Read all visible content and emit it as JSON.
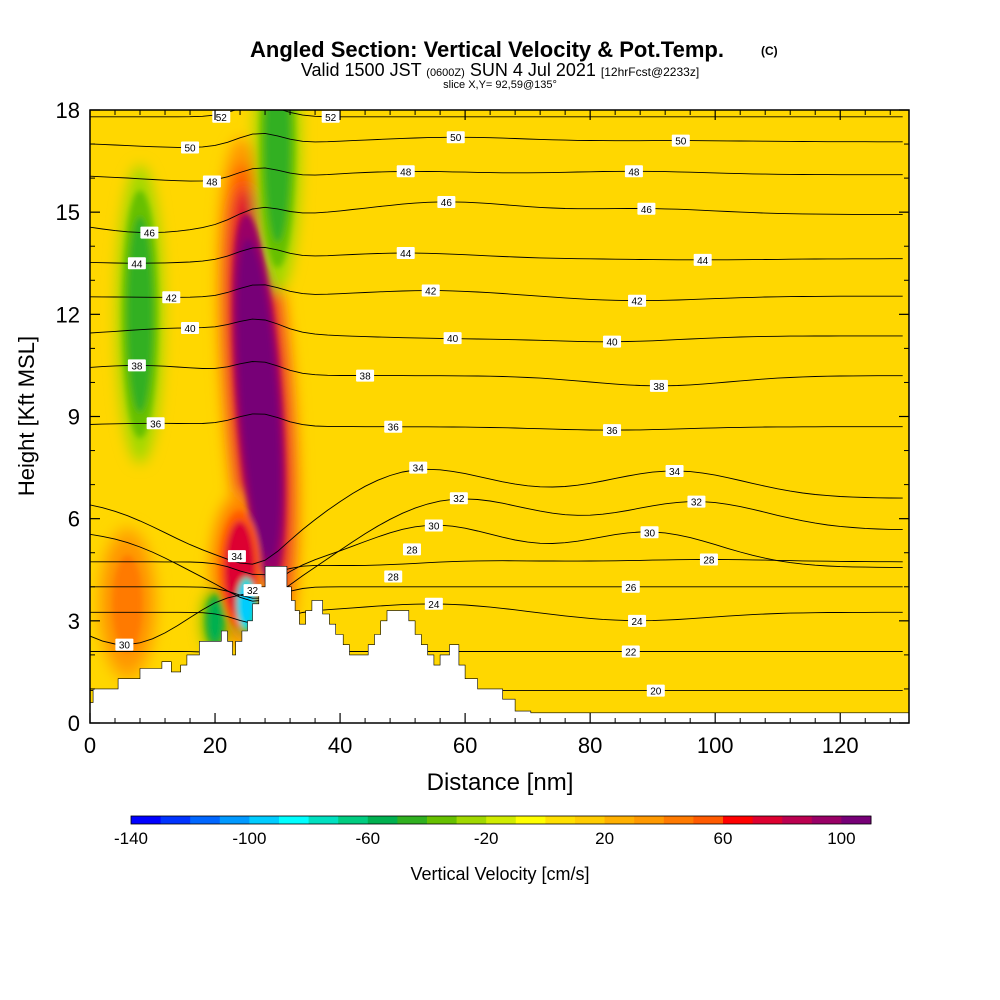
{
  "chart_data": {
    "type": "heatmap",
    "title": "Angled Section: Vertical Velocity & Pot.Temp.",
    "title_units": "(C)",
    "subtitle_main_a": "Valid 1500 JST",
    "subtitle_small_a": "(0600Z)",
    "subtitle_main_b": "SUN 4 Jul 2021",
    "subtitle_small_b": "[12hrFcst@2233z]",
    "slice_label": "slice X,Y= 92,59@135°",
    "xlabel": "Distance [nm]",
    "ylabel": "Height [Kft MSL]",
    "xlim": [
      0,
      131
    ],
    "ylim": [
      0,
      18
    ],
    "x_ticks": [
      0,
      20,
      40,
      60,
      80,
      100,
      120
    ],
    "y_ticks": [
      0,
      3,
      6,
      9,
      12,
      15,
      18
    ],
    "colorbar": {
      "label": "Vertical Velocity [cm/s]",
      "ticks": [
        -140,
        -100,
        -60,
        -20,
        20,
        60,
        100
      ],
      "min": -140,
      "max": 110,
      "colors": [
        "#0000ff",
        "#0033ff",
        "#0066ff",
        "#0099ff",
        "#00ccff",
        "#00ffff",
        "#00e0c0",
        "#00cc80",
        "#00b050",
        "#30b020",
        "#66c000",
        "#a0d800",
        "#d0ec00",
        "#ffff00",
        "#ffe000",
        "#ffcc00",
        "#ffb000",
        "#ff9900",
        "#ff7a00",
        "#ff5a00",
        "#ff0000",
        "#dd0030",
        "#bb0050",
        "#990066",
        "#770077"
      ]
    },
    "velocity_features": [
      {
        "kind": "updraft",
        "x": 27,
        "z": 9.5,
        "max": 110
      },
      {
        "kind": "updraft",
        "x": 24,
        "z": 4.5,
        "max": 70
      },
      {
        "kind": "updraft",
        "x": 6,
        "z": 3.5,
        "max": 45
      },
      {
        "kind": "downdraft",
        "x": 8,
        "z": 12,
        "min": -50
      },
      {
        "kind": "downdraft",
        "x": 30,
        "z": 17,
        "min": -45
      },
      {
        "kind": "downdraft",
        "x": 20,
        "z": 3,
        "min": -60
      },
      {
        "kind": "downdraft",
        "x": 25,
        "z": 3.5,
        "min": -100
      }
    ],
    "theta_contour_labels": [
      {
        "text": "52",
        "x": 21,
        "z": 17.8
      },
      {
        "text": "52",
        "x": 38.5,
        "z": 17.8
      },
      {
        "text": "50",
        "x": 16,
        "z": 16.9
      },
      {
        "text": "50",
        "x": 58.5,
        "z": 17.2
      },
      {
        "text": "50",
        "x": 94.5,
        "z": 17.1
      },
      {
        "text": "48",
        "x": 19.5,
        "z": 15.9
      },
      {
        "text": "48",
        "x": 50.5,
        "z": 16.2
      },
      {
        "text": "48",
        "x": 87,
        "z": 16.2
      },
      {
        "text": "46",
        "x": 9.5,
        "z": 14.4
      },
      {
        "text": "46",
        "x": 57,
        "z": 15.3
      },
      {
        "text": "46",
        "x": 89,
        "z": 15.1
      },
      {
        "text": "44",
        "x": 7.5,
        "z": 13.5
      },
      {
        "text": "44",
        "x": 50.5,
        "z": 13.8
      },
      {
        "text": "44",
        "x": 98,
        "z": 13.6
      },
      {
        "text": "42",
        "x": 13,
        "z": 12.5
      },
      {
        "text": "42",
        "x": 54.5,
        "z": 12.7
      },
      {
        "text": "42",
        "x": 87.5,
        "z": 12.4
      },
      {
        "text": "40",
        "x": 16,
        "z": 11.6
      },
      {
        "text": "40",
        "x": 58,
        "z": 11.3
      },
      {
        "text": "40",
        "x": 83.5,
        "z": 11.2
      },
      {
        "text": "38",
        "x": 7.5,
        "z": 10.5
      },
      {
        "text": "38",
        "x": 44,
        "z": 10.2
      },
      {
        "text": "38",
        "x": 91,
        "z": 9.9
      },
      {
        "text": "36",
        "x": 10.5,
        "z": 8.8
      },
      {
        "text": "36",
        "x": 48.5,
        "z": 8.7
      },
      {
        "text": "36",
        "x": 83.5,
        "z": 8.6
      },
      {
        "text": "34",
        "x": 52.5,
        "z": 7.5
      },
      {
        "text": "34",
        "x": 93.5,
        "z": 7.4
      },
      {
        "text": "34",
        "x": 23.5,
        "z": 4.9
      },
      {
        "text": "32",
        "x": 59,
        "z": 6.6
      },
      {
        "text": "32",
        "x": 97,
        "z": 6.5
      },
      {
        "text": "32",
        "x": 26,
        "z": 3.9
      },
      {
        "text": "30",
        "x": 55,
        "z": 5.8
      },
      {
        "text": "30",
        "x": 89.5,
        "z": 5.6
      },
      {
        "text": "30",
        "x": 5.5,
        "z": 2.3
      },
      {
        "text": "28",
        "x": 51.5,
        "z": 5.1
      },
      {
        "text": "28",
        "x": 99,
        "z": 4.8
      },
      {
        "text": "28",
        "x": 48.5,
        "z": 4.3
      },
      {
        "text": "26",
        "x": 86.5,
        "z": 4.0
      },
      {
        "text": "24",
        "x": 55,
        "z": 3.5
      },
      {
        "text": "24",
        "x": 87.5,
        "z": 3.0
      },
      {
        "text": "22",
        "x": 86.5,
        "z": 2.1
      },
      {
        "text": "20",
        "x": 90.5,
        "z": 0.95
      }
    ],
    "terrain_profile": [
      [
        0,
        0.6
      ],
      [
        0.5,
        0.6
      ],
      [
        0.5,
        1.0
      ],
      [
        4.5,
        1.0
      ],
      [
        4.5,
        1.3
      ],
      [
        8,
        1.3
      ],
      [
        8,
        1.6
      ],
      [
        11.5,
        1.6
      ],
      [
        11.5,
        1.8
      ],
      [
        13,
        1.8
      ],
      [
        13,
        1.5
      ],
      [
        14.5,
        1.5
      ],
      [
        14.5,
        1.7
      ],
      [
        15.5,
        1.7
      ],
      [
        15.5,
        2.0
      ],
      [
        17.5,
        2.0
      ],
      [
        17.5,
        2.4
      ],
      [
        21,
        2.4
      ],
      [
        21,
        2.7
      ],
      [
        22,
        2.7
      ],
      [
        22,
        2.4
      ],
      [
        22.8,
        2.4
      ],
      [
        22.8,
        2.0
      ],
      [
        23.3,
        2.0
      ],
      [
        23.3,
        2.4
      ],
      [
        24.3,
        2.4
      ],
      [
        24.3,
        2.7
      ],
      [
        25.2,
        2.7
      ],
      [
        25.2,
        3.0
      ],
      [
        26,
        3.0
      ],
      [
        26,
        3.5
      ],
      [
        27,
        3.5
      ],
      [
        27,
        4.0
      ],
      [
        28,
        4.0
      ],
      [
        28,
        4.6
      ],
      [
        31.5,
        4.6
      ],
      [
        31.5,
        4.0
      ],
      [
        32.2,
        4.0
      ],
      [
        32.2,
        3.6
      ],
      [
        32.8,
        3.6
      ],
      [
        32.8,
        3.3
      ],
      [
        33.5,
        3.3
      ],
      [
        33.5,
        2.9
      ],
      [
        34.5,
        2.9
      ],
      [
        34.5,
        3.3
      ],
      [
        35.5,
        3.3
      ],
      [
        35.5,
        3.6
      ],
      [
        37.2,
        3.6
      ],
      [
        37.2,
        3.2
      ],
      [
        38.3,
        3.2
      ],
      [
        38.3,
        2.9
      ],
      [
        39.3,
        2.9
      ],
      [
        39.3,
        2.6
      ],
      [
        40.5,
        2.6
      ],
      [
        40.5,
        2.3
      ],
      [
        41.5,
        2.3
      ],
      [
        41.5,
        2.0
      ],
      [
        44.5,
        2.0
      ],
      [
        44.5,
        2.3
      ],
      [
        45.5,
        2.3
      ],
      [
        45.5,
        2.6
      ],
      [
        46.5,
        2.6
      ],
      [
        46.5,
        3.0
      ],
      [
        47.5,
        3.0
      ],
      [
        47.5,
        3.3
      ],
      [
        51,
        3.3
      ],
      [
        51,
        3.0
      ],
      [
        52,
        3.0
      ],
      [
        52,
        2.6
      ],
      [
        53,
        2.6
      ],
      [
        53,
        2.3
      ],
      [
        54,
        2.3
      ],
      [
        54,
        2.0
      ],
      [
        55,
        2.0
      ],
      [
        55,
        1.7
      ],
      [
        56,
        1.7
      ],
      [
        56,
        2.0
      ],
      [
        57.5,
        2.0
      ],
      [
        57.5,
        2.3
      ],
      [
        59,
        2.3
      ],
      [
        59,
        1.7
      ],
      [
        60,
        1.7
      ],
      [
        60,
        1.3
      ],
      [
        62,
        1.3
      ],
      [
        62,
        1.0
      ],
      [
        66,
        1.0
      ],
      [
        66,
        0.7
      ],
      [
        68,
        0.7
      ],
      [
        68,
        0.35
      ],
      [
        70.5,
        0.35
      ],
      [
        70.5,
        0.3
      ],
      [
        131,
        0.3
      ]
    ]
  }
}
